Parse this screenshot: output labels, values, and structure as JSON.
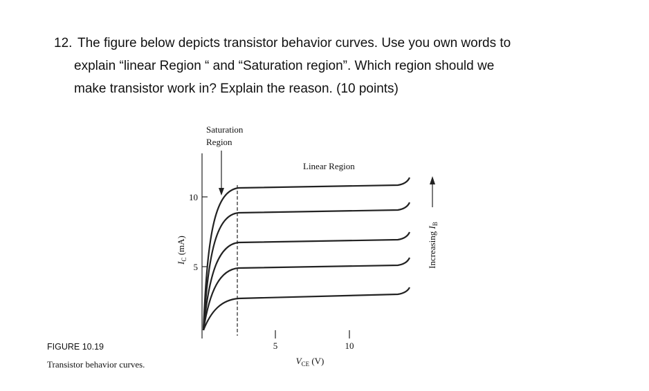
{
  "question": {
    "number": "12.",
    "lines": [
      "The figure below depicts transistor behavior curves. Use you own words to",
      "explain “linear Region “ and “Saturation region”. Which region should we",
      "make transistor work in? Explain the reason. (10 points)"
    ]
  },
  "figure": {
    "caption_label": "FIGURE 10.19",
    "caption": "Transistor behavior curves.",
    "saturation_label": [
      "Saturation",
      "Region"
    ],
    "linear_label": "Linear Region",
    "y_axis_label": {
      "symbol": "I",
      "subscript": "C",
      "unit": " (mA)"
    },
    "x_axis_label": {
      "symbol": "V",
      "subscript": "CE",
      "unit": " (V)"
    },
    "side_label": {
      "text": "Increasing ",
      "symbol": "I",
      "subscript": "B"
    },
    "y_ticks": [
      10,
      5
    ],
    "x_ticks": [
      5,
      10
    ]
  }
}
